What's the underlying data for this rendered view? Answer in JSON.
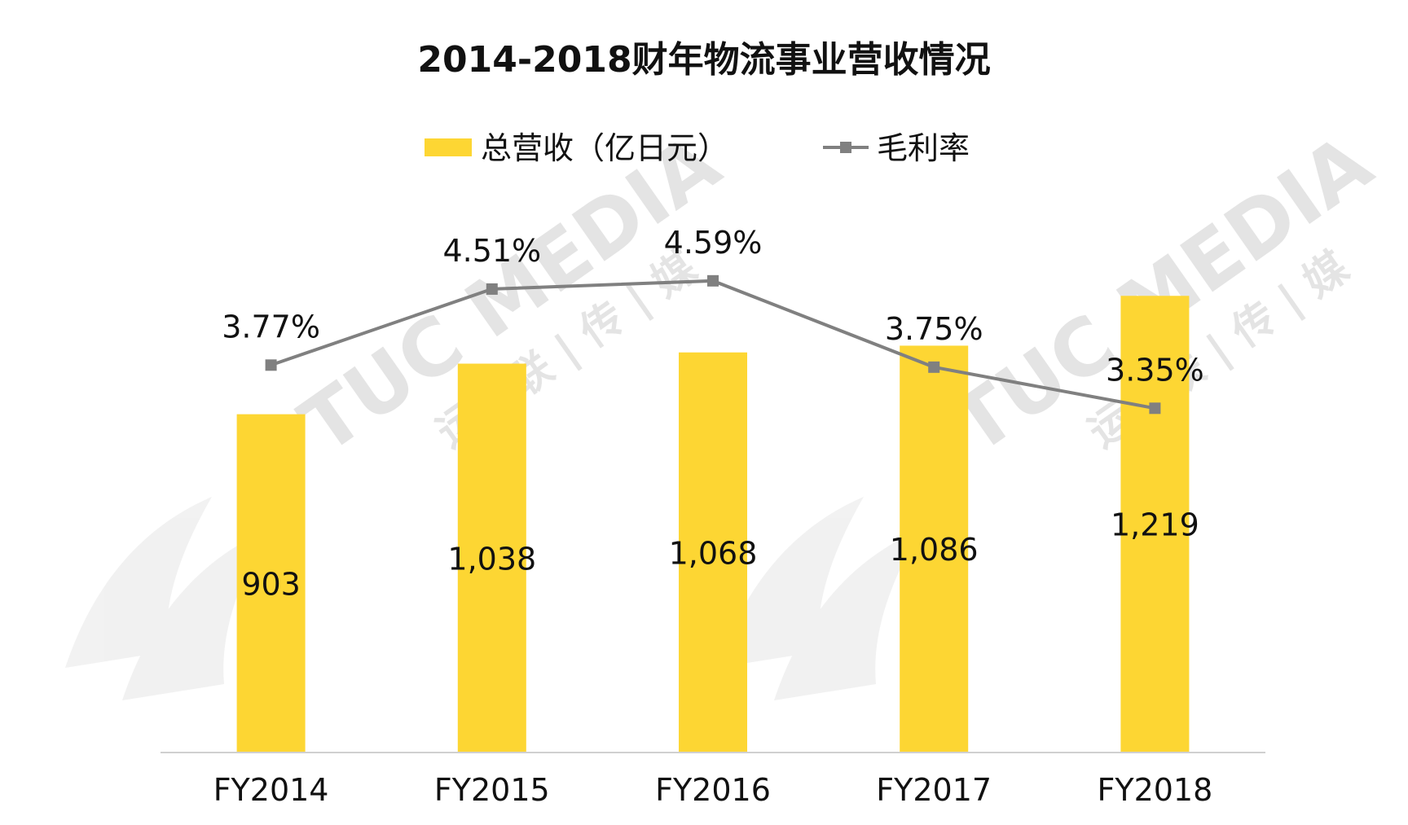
{
  "chart_data": {
    "type": "bar",
    "title": "2014-2018财年物流事业营收情况",
    "categories": [
      "FY2014",
      "FY2015",
      "FY2016",
      "FY2017",
      "FY2018"
    ],
    "series": [
      {
        "name": "总营收（亿日元）",
        "type": "bar",
        "values": [
          903,
          1038,
          1068,
          1086,
          1219
        ],
        "labels": [
          "903",
          "1,038",
          "1,068",
          "1,086",
          "1,219"
        ],
        "color": "#FDD633"
      },
      {
        "name": "毛利率",
        "type": "line",
        "values": [
          3.77,
          4.51,
          4.59,
          3.75,
          3.35
        ],
        "labels": [
          "3.77%",
          "4.51%",
          "4.59%",
          "3.75%",
          "3.35%"
        ],
        "color": "#808080"
      }
    ],
    "bar_ylim": [
      0,
      1400
    ],
    "line_ylim": [
      0,
      5.5
    ],
    "legend": "top-center",
    "grid": false
  },
  "watermark": {
    "brand": "TUC MEDIA",
    "chinese": "运 | 联 | 传 | 媒"
  }
}
